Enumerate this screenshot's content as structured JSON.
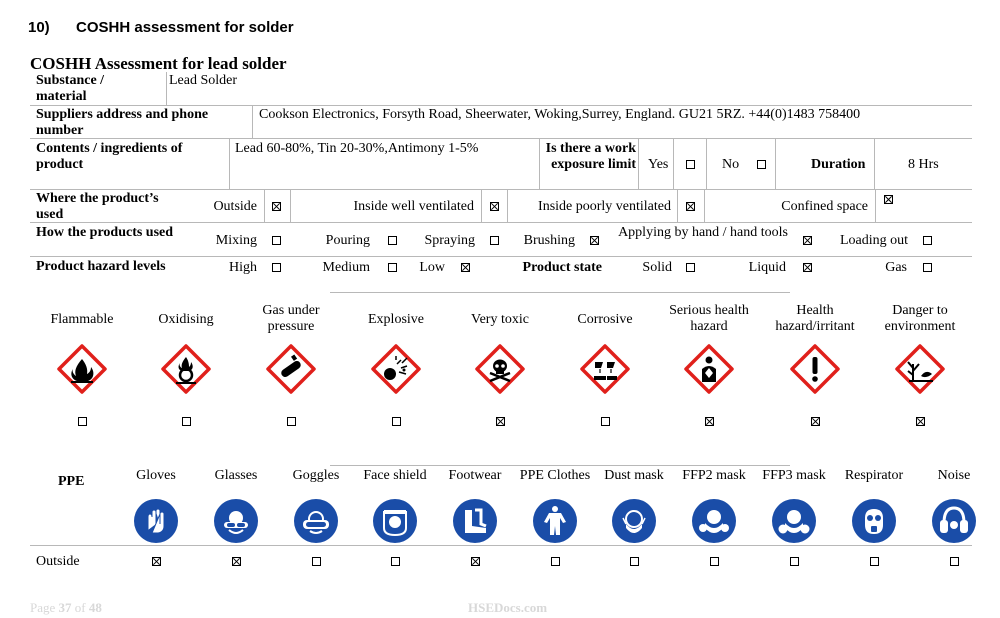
{
  "section": {
    "number": "10)",
    "title": "COSHH assessment for solder"
  },
  "assessment_title": "COSHH Assessment for lead solder",
  "substance": {
    "label": "Substance / material",
    "value": "Lead Solder"
  },
  "supplier": {
    "label": "Suppliers address and phone number",
    "value": "Cookson Electronics, Forsyth Road, Sheerwater, Woking,Surrey, England. GU21 5RZ.   +44(0)1483 758400"
  },
  "contents": {
    "label": "Contents / ingredients of product",
    "value": "Lead 60-80%, Tin 20-30%,Antimony 1-5%",
    "exposure_label": "Is there a work exposure limit",
    "yes_label": "Yes",
    "yes_checked": false,
    "no_label": "No",
    "no_checked": false,
    "duration_label": "Duration",
    "duration_value": "8 Hrs"
  },
  "where_used": {
    "label": "Where the product’s used",
    "options": [
      {
        "label": "Outside",
        "checked": true
      },
      {
        "label": "Inside well ventilated",
        "checked": true
      },
      {
        "label": "Inside poorly ventilated",
        "checked": true
      },
      {
        "label": "Confined space",
        "checked": true
      }
    ]
  },
  "how_used": {
    "label": "How the products used",
    "options": [
      {
        "label": "Mixing",
        "checked": false
      },
      {
        "label": "Pouring",
        "checked": false
      },
      {
        "label": "Spraying",
        "checked": false
      },
      {
        "label": "Brushing",
        "checked": true
      },
      {
        "label": "Applying by hand / hand tools",
        "checked": true
      },
      {
        "label": "Loading out",
        "checked": false
      }
    ]
  },
  "hazard_levels": {
    "label": "Product hazard levels",
    "options": [
      {
        "label": "High",
        "checked": false
      },
      {
        "label": "Medium",
        "checked": false
      },
      {
        "label": "Low",
        "checked": true
      }
    ]
  },
  "product_state": {
    "label": "Product state",
    "options": [
      {
        "label": "Solid",
        "checked": false
      },
      {
        "label": "Liquid",
        "checked": true
      },
      {
        "label": "Gas",
        "checked": false
      }
    ]
  },
  "hazards": [
    {
      "label": "Flammable",
      "icon": "flame-icon",
      "checked": false
    },
    {
      "label": "Oxidising",
      "icon": "flame-over-circle-icon",
      "checked": false
    },
    {
      "label": "Gas under pressure",
      "icon": "gas-cylinder-icon",
      "checked": false
    },
    {
      "label": "Explosive",
      "icon": "exploding-bomb-icon",
      "checked": false
    },
    {
      "label": "Very toxic",
      "icon": "skull-crossbones-icon",
      "checked": true
    },
    {
      "label": "Corrosive",
      "icon": "corrosion-icon",
      "checked": false
    },
    {
      "label": "Serious health hazard",
      "icon": "health-hazard-icon",
      "checked": true
    },
    {
      "label": "Health hazard/irritant",
      "icon": "exclamation-icon",
      "checked": true
    },
    {
      "label": "Danger to environment",
      "icon": "environment-icon",
      "checked": true
    }
  ],
  "ppe": {
    "label": "PPE",
    "row_label": "Outside",
    "items": [
      {
        "label": "Gloves",
        "icon": "gloves-icon",
        "checked": true
      },
      {
        "label": "Glasses",
        "icon": "glasses-icon",
        "checked": true
      },
      {
        "label": "Goggles",
        "icon": "goggles-icon",
        "checked": false
      },
      {
        "label": "Face shield",
        "icon": "face-shield-icon",
        "checked": false
      },
      {
        "label": "Footwear",
        "icon": "boots-icon",
        "checked": true
      },
      {
        "label": "PPE Clothes",
        "icon": "overalls-icon",
        "checked": false
      },
      {
        "label": "Dust mask",
        "icon": "dust-mask-icon",
        "checked": false
      },
      {
        "label": "FFP2 mask",
        "icon": "ffp2-mask-icon",
        "checked": false
      },
      {
        "label": "FFP3 mask",
        "icon": "ffp3-mask-icon",
        "checked": false
      },
      {
        "label": "Respirator",
        "icon": "respirator-icon",
        "checked": false
      },
      {
        "label": "Noise",
        "icon": "ear-defenders-icon",
        "checked": false
      }
    ]
  },
  "footer": {
    "page_word": "Page",
    "page_number": "37",
    "of_word": "of",
    "page_total": "48",
    "site": "HSEDocs.com"
  },
  "colors": {
    "ghs_red": "#e0201b",
    "ppe_blue": "#1a4da8",
    "footer_grey": "#d8d8d8"
  }
}
